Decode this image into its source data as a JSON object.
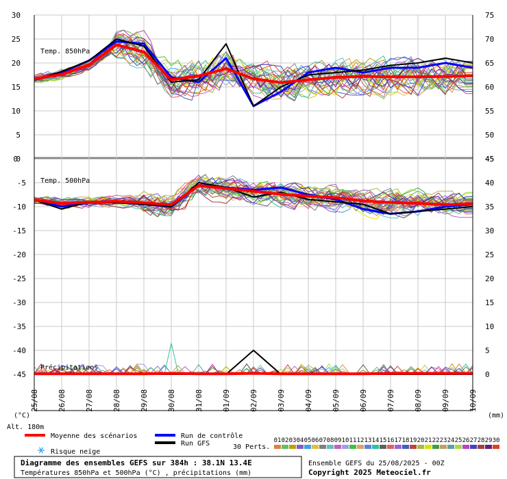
{
  "chart_data": [
    {
      "type": "line",
      "panel": "Temp. 850hPa",
      "title": "Temp. 850hPa",
      "ylim": [
        0,
        30
      ],
      "left_ticks": [
        "30",
        "25",
        "20",
        "15",
        "10",
        "5",
        "0"
      ],
      "right_ticks": [
        "75",
        "70",
        "65",
        "60",
        "55",
        "50",
        "45"
      ],
      "x": [
        "25/08",
        "26/08",
        "27/08",
        "28/08",
        "29/08",
        "30/08",
        "31/08",
        "01/09",
        "02/09",
        "03/09",
        "04/09",
        "05/09",
        "06/09",
        "07/09",
        "08/09",
        "09/09",
        "10/09"
      ],
      "series": [
        {
          "role": "mean",
          "values": [
            16.7,
            17.6,
            19.6,
            23.8,
            22.3,
            16.5,
            17.3,
            18.8,
            16.7,
            15.9,
            16.5,
            17.0,
            17.2,
            17.1,
            17.1,
            17.2,
            17.3
          ]
        },
        {
          "role": "control",
          "values": [
            16.5,
            18.0,
            20.5,
            24.5,
            24.0,
            17.0,
            16.0,
            21.0,
            11.0,
            14.0,
            18.0,
            19.0,
            18.0,
            19.0,
            19.0,
            20.0,
            19.0
          ]
        },
        {
          "role": "gfs",
          "values": [
            16.5,
            18.2,
            20.5,
            25.0,
            23.5,
            16.0,
            16.5,
            24.0,
            11.0,
            15.0,
            17.5,
            18.0,
            18.5,
            19.5,
            20.0,
            21.0,
            20.0
          ]
        }
      ]
    },
    {
      "type": "line",
      "panel": "Temp. 500hPa",
      "title": "Temp. 500hPa",
      "ylim": [
        -45,
        0
      ],
      "left_ticks": [
        "0",
        "-5",
        "-10",
        "-15",
        "-20",
        "-25",
        "-30",
        "-35",
        "-40",
        "-45"
      ],
      "right_ticks": [
        "45",
        "40",
        "35",
        "30",
        "25",
        "20",
        "15",
        "10",
        "5",
        "0"
      ],
      "series": [
        {
          "role": "mean",
          "values": [
            -8.6,
            -9.3,
            -9.1,
            -8.9,
            -9.2,
            -9.6,
            -5.6,
            -6.2,
            -6.8,
            -7.4,
            -7.8,
            -8.1,
            -8.8,
            -9.1,
            -9.3,
            -9.6,
            -9.4
          ]
        },
        {
          "role": "control",
          "values": [
            -8.6,
            -10.0,
            -9.2,
            -9.0,
            -9.5,
            -10.0,
            -5.5,
            -6.0,
            -6.5,
            -6.0,
            -7.5,
            -8.5,
            -10.5,
            -11.5,
            -11.0,
            -10.0,
            -9.5
          ]
        },
        {
          "role": "gfs",
          "values": [
            -8.6,
            -10.5,
            -9.0,
            -9.2,
            -9.5,
            -10.0,
            -5.0,
            -6.0,
            -8.0,
            -7.0,
            -8.5,
            -9.0,
            -9.5,
            -11.5,
            -11.0,
            -10.5,
            -10.0
          ]
        }
      ]
    },
    {
      "type": "line",
      "panel": "Précipitations",
      "title": "Précipitations",
      "units": "(mm)",
      "right_ticks": [
        "5",
        "0"
      ],
      "series": [
        {
          "role": "mean",
          "values": [
            0.1,
            0.1,
            0.1,
            0.1,
            0.1,
            0.2,
            0.1,
            0.1,
            0.2,
            0.1,
            0.1,
            0.1,
            0.1,
            0.2,
            0.2,
            0.2,
            0.2
          ]
        },
        {
          "role": "gfs",
          "values": [
            0,
            0,
            0,
            0,
            0,
            0,
            0,
            0,
            5.0,
            0,
            0,
            0,
            0,
            0,
            0,
            0,
            0
          ]
        }
      ]
    }
  ],
  "axis": {
    "left_unit": "(°C)",
    "right_unit": "(mm)",
    "alt": "Alt. 180m"
  },
  "legend": {
    "mean": "Moyenne des scénarios",
    "control": "Run de contrôle",
    "gfs": "Run GFS",
    "snow": "Risque neige",
    "perts": "30 Perts.",
    "pert_numbers": [
      "01",
      "02",
      "03",
      "04",
      "05",
      "06",
      "07",
      "08",
      "09",
      "10",
      "11",
      "12",
      "13",
      "14",
      "15",
      "16",
      "17",
      "18",
      "19",
      "20",
      "21",
      "22",
      "23",
      "24",
      "25",
      "26",
      "27",
      "28",
      "29",
      "30"
    ],
    "pert_colors": [
      "#e08040",
      "#60c060",
      "#c0a000",
      "#8060c0",
      "#40a0e0",
      "#e0c040",
      "#808080",
      "#60c0c0",
      "#c060c0",
      "#a0a0e0",
      "#40c040",
      "#e0a060",
      "#6080e0",
      "#30c0a0",
      "#606060",
      "#e06060",
      "#a060e0",
      "#4060c0",
      "#c04040",
      "#a0c040",
      "#e0e000",
      "#40a040",
      "#c0a060",
      "#60a0a0",
      "#a0e040",
      "#c040c0",
      "#4040c0",
      "#a04040",
      "#602080",
      "#e04020"
    ],
    "mean_color": "#ff0000",
    "control_color": "#0000ff",
    "gfs_color": "#000000"
  },
  "footer": {
    "title": "Diagramme des ensembles GEFS sur 384h : 38.1N 13.4E",
    "subtitle": "Températures 850hPa et 500hPa (°C) , précipitations (mm)",
    "run": "Ensemble GEFS du 25/08/2025 - 00Z",
    "copyright": "Copyright 2025 Meteociel.fr"
  }
}
